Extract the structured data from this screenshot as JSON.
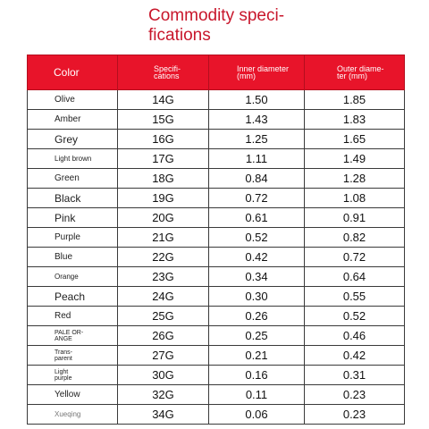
{
  "title_lines": [
    "Commodity speci-",
    "fications"
  ],
  "headers": {
    "color": "Color",
    "spec": [
      "Specifi-",
      "cations"
    ],
    "inner": [
      "Inner diameter",
      "(mm)"
    ],
    "outer": [
      "Outer diame-",
      "ter (mm)"
    ]
  },
  "rows": [
    {
      "color": "Olive",
      "spec": "14G",
      "inner": "1.50",
      "outer": "1.85"
    },
    {
      "color": "Amber",
      "spec": "15G",
      "inner": "1.43",
      "outer": "1.83"
    },
    {
      "color": "Grey",
      "spec": "16G",
      "inner": "1.25",
      "outer": "1.65"
    },
    {
      "color": "Light brown",
      "spec": "17G",
      "inner": "1.11",
      "outer": "1.49"
    },
    {
      "color": "Green",
      "spec": "18G",
      "inner": "0.84",
      "outer": "1.28"
    },
    {
      "color": "Black",
      "spec": "19G",
      "inner": "0.72",
      "outer": "1.08"
    },
    {
      "color": "Pink",
      "spec": "20G",
      "inner": "0.61",
      "outer": "0.91"
    },
    {
      "color": "Purple",
      "spec": "21G",
      "inner": "0.52",
      "outer": "0.82"
    },
    {
      "color": "Blue",
      "spec": "22G",
      "inner": "0.42",
      "outer": "0.72"
    },
    {
      "color": "Orange",
      "spec": "23G",
      "inner": "0.34",
      "outer": "0.64"
    },
    {
      "color": "Peach",
      "spec": "24G",
      "inner": "0.30",
      "outer": "0.55"
    },
    {
      "color": "Red",
      "spec": "25G",
      "inner": "0.26",
      "outer": "0.52"
    },
    {
      "color": "PALE OR-\nANGE",
      "spec": "26G",
      "inner": "0.25",
      "outer": "0.46"
    },
    {
      "color": "Trans-\nparent",
      "spec": "27G",
      "inner": "0.21",
      "outer": "0.42"
    },
    {
      "color": "Light\npurple",
      "spec": "30G",
      "inner": "0.16",
      "outer": "0.31"
    },
    {
      "color": "Yellow",
      "spec": "32G",
      "inner": "0.11",
      "outer": "0.23"
    },
    {
      "color": "Xueqing",
      "spec": "34G",
      "inner": "0.06",
      "outer": "0.23"
    }
  ],
  "accent_color": "#e8142a",
  "title_color": "#c8162b"
}
